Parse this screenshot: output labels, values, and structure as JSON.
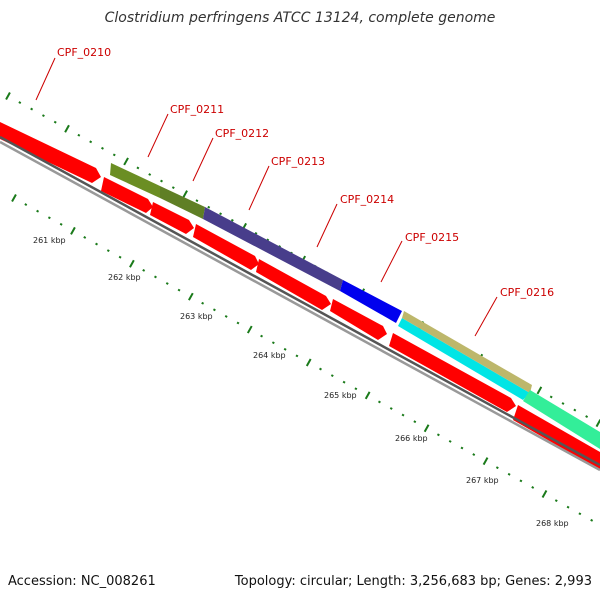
{
  "title": "Clostridium perfringens ATCC 13124, complete genome",
  "footer": {
    "accession": "Accession: NC_008261",
    "summary": "Topology: circular; Length: 3,256,683 bp; Genes: 2,993"
  },
  "genes": [
    {
      "label": "CPF_0210",
      "color": "#6b8e23"
    },
    {
      "label": "CPF_0211",
      "color": "#6b8e23"
    },
    {
      "label": "CPF_0212",
      "color": "#556b2f"
    },
    {
      "label": "CPF_0213",
      "color": "#483d8b"
    },
    {
      "label": "CPF_0214",
      "color": "#0000ee"
    },
    {
      "label": "CPF_0215",
      "color": "#00e5e5"
    },
    {
      "label": "CPF_0216",
      "color": "#bdb76b"
    }
  ],
  "ticks": [
    "261 kbp",
    "262 kbp",
    "263 kbp",
    "264 kbp",
    "265 kbp",
    "266 kbp",
    "267 kbp",
    "268 kbp"
  ],
  "colors": {
    "cds": "#ff0000",
    "backbone": "#808080",
    "tick": "#1a7a1a",
    "label": "#cc0000",
    "green_feature": "#33ee99"
  }
}
